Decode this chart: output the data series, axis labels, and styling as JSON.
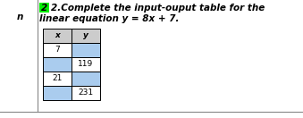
{
  "title_line1": "2.Complete the input-ouput table for the",
  "title_line2": "linear equation y = 8x + 7.",
  "number_label": "n",
  "col_headers": [
    "x",
    "y"
  ],
  "rows": [
    [
      "7",
      ""
    ],
    [
      "",
      "119"
    ],
    [
      "21",
      ""
    ],
    [
      "",
      "231"
    ]
  ],
  "header_bg": "#cccccc",
  "empty_cell_bg": "#aaccee",
  "filled_cell_bg": "#ffffff",
  "number_bg": "#00ee00",
  "border_color": "#888888",
  "title_fontsize": 7.5,
  "cell_fontsize": 6.5,
  "badge_fontsize": 7.5
}
